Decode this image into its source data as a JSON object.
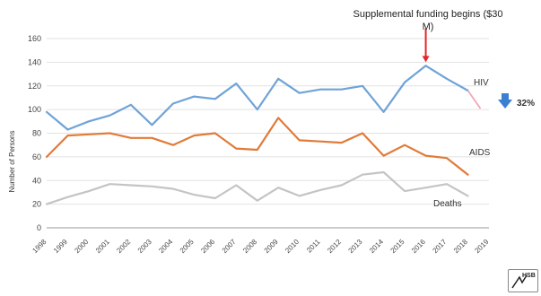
{
  "chart_data": {
    "type": "line",
    "title": "",
    "xlabel": "",
    "ylabel": "Number of Persons",
    "x": [
      "1998",
      "1999",
      "2000",
      "2001",
      "2002",
      "2003",
      "2004",
      "2005",
      "2006",
      "2007",
      "2008",
      "2009",
      "2010",
      "2011",
      "2012",
      "2013",
      "2014",
      "2015",
      "2016",
      "2017",
      "2018",
      "2019"
    ],
    "ylim": [
      0,
      160
    ],
    "yticks": [
      0,
      20,
      40,
      60,
      80,
      100,
      120,
      140,
      160
    ],
    "grid": true,
    "series": [
      {
        "name": "HIV",
        "color": "#6fa3d8",
        "values": [
          98,
          83,
          90,
          95,
          104,
          87,
          105,
          111,
          109,
          122,
          100,
          126,
          114,
          117,
          117,
          120,
          98,
          123,
          137,
          126,
          116,
          null
        ]
      },
      {
        "name": "AIDS",
        "color": "#e07b39",
        "values": [
          60,
          78,
          79,
          80,
          76,
          76,
          70,
          78,
          80,
          67,
          66,
          93,
          74,
          73,
          72,
          80,
          61,
          70,
          61,
          59,
          45,
          null
        ]
      },
      {
        "name": "Deaths",
        "color": "#c4c4c4",
        "values": [
          20,
          26,
          31,
          37,
          36,
          35,
          33,
          28,
          25,
          36,
          23,
          34,
          27,
          32,
          36,
          45,
          47,
          31,
          34,
          37,
          27,
          null
        ]
      }
    ],
    "annotations": {
      "funding": "Supplemental funding begins ($30 M)",
      "decline": "32%"
    }
  },
  "logo_text": "HSB"
}
